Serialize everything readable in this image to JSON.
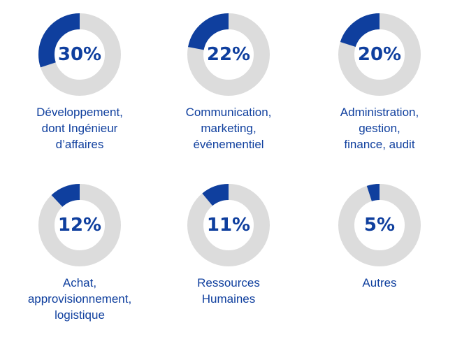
{
  "chart_data": {
    "type": "pie",
    "colors": {
      "value": "#0f3f9e",
      "track": "#dcdcdc"
    },
    "items": [
      {
        "percent_label": "30%",
        "value": 30,
        "label": "Développement,\ndont Ingénieur\nd’affaires"
      },
      {
        "percent_label": "22%",
        "value": 22,
        "label": "Communication,\nmarketing,\névénementiel"
      },
      {
        "percent_label": "20%",
        "value": 20,
        "label": "Administration,\ngestion,\nfinance, audit"
      },
      {
        "percent_label": "12%",
        "value": 12,
        "label": "Achat,\napprovisionnement,\nlogistique"
      },
      {
        "percent_label": "11%",
        "value": 11,
        "label": "Ressources\nHumaines"
      },
      {
        "percent_label": "5%",
        "value": 5,
        "label": "Autres"
      }
    ]
  }
}
